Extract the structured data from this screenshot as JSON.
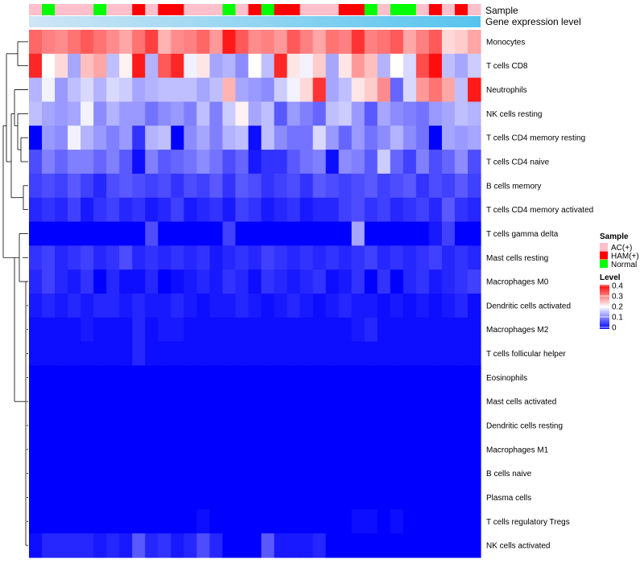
{
  "chart_data": {
    "type": "heatmap",
    "title": "",
    "annotation_labels": {
      "sample": "Sample",
      "gene_expression": "Gene expression level"
    },
    "row_labels": [
      "Monocytes",
      "T cells CD8",
      "Neutrophils",
      "NK cells resting",
      "T cells CD4 memory resting",
      "T cells CD4 naive",
      "B cells memory",
      "T cells CD4 memory activated",
      "T cells gamma delta",
      "Mast cells resting",
      "Macrophages M0",
      "Dendritic cells activated",
      "Macrophages M2",
      "T cells follicular helper",
      "Eosinophils",
      "Mast cells activated",
      "Dendritic cells resting",
      "Macrophages M1",
      "B cells naive",
      "Plasma cells",
      "T cells regulatory  Tregs",
      "NK cells activated"
    ],
    "sample_groups": [
      "AC",
      "Normal",
      "AC",
      "AC",
      "AC",
      "Normal",
      "AC",
      "AC",
      "HAM",
      "AC",
      "HAM",
      "HAM",
      "AC",
      "AC",
      "AC",
      "Normal",
      "AC",
      "HAM",
      "Normal",
      "HAM",
      "HAM",
      "AC",
      "AC",
      "AC",
      "HAM",
      "HAM",
      "Normal",
      "AC",
      "Normal",
      "Normal",
      "AC",
      "HAM",
      "AC",
      "HAM",
      "AC"
    ],
    "expression_gradient_colors": [
      "#cfe6f5",
      "#56c4ee"
    ],
    "values": [
      [
        0.32,
        0.3,
        0.29,
        0.31,
        0.33,
        0.31,
        0.29,
        0.27,
        0.31,
        0.35,
        0.26,
        0.29,
        0.3,
        0.32,
        0.28,
        0.38,
        0.33,
        0.29,
        0.3,
        0.28,
        0.33,
        0.3,
        0.27,
        0.31,
        0.3,
        0.36,
        0.3,
        0.31,
        0.33,
        0.27,
        0.3,
        0.33,
        0.23,
        0.24,
        0.27
      ],
      [
        0.37,
        0.2,
        0.23,
        0.13,
        0.25,
        0.27,
        0.15,
        0.21,
        0.38,
        0.14,
        0.33,
        0.37,
        0.19,
        0.22,
        0.13,
        0.14,
        0.11,
        0.2,
        0.15,
        0.37,
        0.22,
        0.19,
        0.24,
        0.13,
        0.22,
        0.28,
        0.25,
        0.14,
        0.2,
        0.17,
        0.34,
        0.39,
        0.15,
        0.13,
        0.16
      ],
      [
        0.14,
        0.19,
        0.12,
        0.15,
        0.17,
        0.14,
        0.17,
        0.16,
        0.13,
        0.14,
        0.15,
        0.15,
        0.15,
        0.13,
        0.15,
        0.26,
        0.13,
        0.12,
        0.11,
        0.16,
        0.19,
        0.23,
        0.36,
        0.13,
        0.15,
        0.22,
        0.24,
        0.29,
        0.08,
        0.17,
        0.28,
        0.31,
        0.27,
        0.15,
        0.38
      ],
      [
        0.15,
        0.13,
        0.12,
        0.13,
        0.19,
        0.11,
        0.14,
        0.12,
        0.12,
        0.09,
        0.11,
        0.12,
        0.1,
        0.15,
        0.1,
        0.16,
        0.21,
        0.13,
        0.15,
        0.07,
        0.12,
        0.1,
        0.08,
        0.15,
        0.16,
        0.12,
        0.07,
        0.13,
        0.11,
        0.1,
        0.09,
        0.12,
        0.13,
        0.15,
        0.14
      ],
      [
        0.0,
        0.12,
        0.11,
        0.19,
        0.14,
        0.12,
        0.1,
        0.12,
        0.04,
        0.14,
        0.15,
        0.0,
        0.11,
        0.13,
        0.1,
        0.14,
        0.15,
        0.01,
        0.15,
        0.11,
        0.09,
        0.09,
        0.17,
        0.12,
        0.08,
        0.12,
        0.09,
        0.11,
        0.14,
        0.11,
        0.09,
        0.0,
        0.13,
        0.12,
        0.13
      ],
      [
        0.06,
        0.1,
        0.08,
        0.1,
        0.1,
        0.08,
        0.1,
        0.07,
        0.01,
        0.1,
        0.07,
        0.08,
        0.09,
        0.11,
        0.09,
        0.06,
        0.08,
        0.02,
        0.04,
        0.04,
        0.07,
        0.09,
        0.1,
        0.01,
        0.11,
        0.1,
        0.07,
        0.16,
        0.08,
        0.05,
        0.1,
        0.06,
        0.08,
        0.11,
        0.06
      ],
      [
        0.05,
        0.06,
        0.05,
        0.07,
        0.05,
        0.03,
        0.06,
        0.07,
        0.06,
        0.05,
        0.06,
        0.04,
        0.06,
        0.05,
        0.07,
        0.04,
        0.07,
        0.06,
        0.04,
        0.05,
        0.06,
        0.04,
        0.07,
        0.06,
        0.05,
        0.06,
        0.07,
        0.05,
        0.06,
        0.07,
        0.04,
        0.06,
        0.05,
        0.07,
        0.05
      ],
      [
        0.03,
        0.04,
        0.03,
        0.05,
        0.02,
        0.04,
        0.05,
        0.03,
        0.04,
        0.02,
        0.03,
        0.05,
        0.02,
        0.03,
        0.04,
        0.02,
        0.05,
        0.04,
        0.02,
        0.03,
        0.04,
        0.02,
        0.03,
        0.03,
        0.05,
        0.06,
        0.04,
        0.05,
        0.03,
        0.04,
        0.05,
        0.03,
        0.07,
        0.04,
        0.03
      ],
      [
        0.0,
        0.0,
        0.0,
        0.0,
        0.0,
        0.0,
        0.0,
        0.0,
        0.0,
        0.06,
        0.0,
        0.0,
        0.0,
        0.0,
        0.0,
        0.05,
        0.0,
        0.0,
        0.0,
        0.0,
        0.0,
        0.0,
        0.0,
        0.0,
        0.0,
        0.13,
        0.0,
        0.0,
        0.0,
        0.0,
        0.0,
        0.02,
        0.05,
        0.0,
        0.0
      ],
      [
        0.04,
        0.05,
        0.03,
        0.04,
        0.05,
        0.03,
        0.04,
        0.06,
        0.03,
        0.04,
        0.03,
        0.04,
        0.03,
        0.04,
        0.02,
        0.03,
        0.04,
        0.03,
        0.05,
        0.04,
        0.03,
        0.04,
        0.03,
        0.04,
        0.03,
        0.04,
        0.05,
        0.03,
        0.04,
        0.03,
        0.04,
        0.05,
        0.03,
        0.04,
        0.03
      ],
      [
        0.03,
        0.05,
        0.03,
        0.02,
        0.04,
        0.0,
        0.03,
        0.01,
        0.01,
        0.03,
        0.0,
        0.01,
        0.02,
        0.03,
        0.02,
        0.04,
        0.03,
        0.01,
        0.04,
        0.03,
        0.02,
        0.03,
        0.04,
        0.01,
        0.02,
        0.04,
        0.0,
        0.04,
        0.0,
        0.03,
        0.04,
        0.02,
        0.03,
        0.04,
        0.05
      ],
      [
        0.02,
        0.03,
        0.02,
        0.03,
        0.02,
        0.03,
        0.03,
        0.02,
        0.03,
        0.02,
        0.02,
        0.03,
        0.02,
        0.01,
        0.02,
        0.02,
        0.03,
        0.02,
        0.01,
        0.02,
        0.03,
        0.02,
        0.01,
        0.02,
        0.03,
        0.02,
        0.02,
        0.01,
        0.02,
        0.01,
        0.02,
        0.01,
        0.02,
        0.03,
        0.01
      ],
      [
        0.01,
        0.01,
        0.01,
        0.01,
        0.02,
        0.01,
        0.01,
        0.01,
        0.03,
        0.01,
        0.02,
        0.02,
        0.01,
        0.01,
        0.01,
        0.01,
        0.01,
        0.01,
        0.01,
        0.01,
        0.01,
        0.01,
        0.01,
        0.01,
        0.01,
        0.02,
        0.03,
        0.01,
        0.01,
        0.01,
        0.01,
        0.01,
        0.01,
        0.01,
        0.01
      ],
      [
        0.01,
        0.01,
        0.01,
        0.01,
        0.01,
        0.01,
        0.01,
        0.01,
        0.03,
        0.01,
        0.01,
        0.01,
        0.01,
        0.01,
        0.01,
        0.01,
        0.01,
        0.01,
        0.01,
        0.01,
        0.01,
        0.01,
        0.01,
        0.01,
        0.01,
        0.01,
        0.01,
        0.01,
        0.01,
        0.01,
        0.01,
        0.01,
        0.01,
        0.01,
        0.01
      ],
      [
        0.0,
        0.0,
        0.0,
        0.0,
        0.0,
        0.0,
        0.0,
        0.0,
        0.0,
        0.0,
        0.0,
        0.0,
        0.0,
        0.0,
        0.0,
        0.0,
        0.0,
        0.0,
        0.0,
        0.0,
        0.0,
        0.0,
        0.0,
        0.0,
        0.0,
        0.0,
        0.0,
        0.0,
        0.0,
        0.0,
        0.0,
        0.0,
        0.0,
        0.0,
        0.0
      ],
      [
        0.0,
        0.0,
        0.0,
        0.0,
        0.0,
        0.0,
        0.0,
        0.0,
        0.0,
        0.0,
        0.0,
        0.0,
        0.0,
        0.0,
        0.0,
        0.0,
        0.0,
        0.0,
        0.0,
        0.0,
        0.0,
        0.0,
        0.0,
        0.0,
        0.0,
        0.0,
        0.0,
        0.0,
        0.0,
        0.0,
        0.0,
        0.0,
        0.0,
        0.0,
        0.0
      ],
      [
        0.0,
        0.0,
        0.0,
        0.0,
        0.0,
        0.0,
        0.0,
        0.0,
        0.0,
        0.0,
        0.0,
        0.0,
        0.0,
        0.0,
        0.0,
        0.0,
        0.0,
        0.0,
        0.0,
        0.0,
        0.0,
        0.0,
        0.0,
        0.0,
        0.0,
        0.0,
        0.0,
        0.0,
        0.0,
        0.0,
        0.0,
        0.0,
        0.0,
        0.0,
        0.0
      ],
      [
        0.0,
        0.0,
        0.0,
        0.0,
        0.0,
        0.0,
        0.0,
        0.0,
        0.0,
        0.0,
        0.0,
        0.0,
        0.0,
        0.0,
        0.0,
        0.0,
        0.0,
        0.0,
        0.0,
        0.0,
        0.0,
        0.0,
        0.0,
        0.0,
        0.0,
        0.0,
        0.0,
        0.0,
        0.0,
        0.0,
        0.0,
        0.0,
        0.0,
        0.0,
        0.0
      ],
      [
        0.0,
        0.0,
        0.0,
        0.0,
        0.0,
        0.0,
        0.0,
        0.0,
        0.0,
        0.0,
        0.0,
        0.0,
        0.0,
        0.0,
        0.0,
        0.0,
        0.0,
        0.0,
        0.0,
        0.0,
        0.0,
        0.0,
        0.0,
        0.0,
        0.0,
        0.0,
        0.0,
        0.0,
        0.0,
        0.0,
        0.0,
        0.0,
        0.0,
        0.0,
        0.0
      ],
      [
        0.0,
        0.0,
        0.0,
        0.0,
        0.0,
        0.0,
        0.0,
        0.0,
        0.0,
        0.0,
        0.0,
        0.0,
        0.0,
        0.0,
        0.0,
        0.0,
        0.0,
        0.0,
        0.0,
        0.0,
        0.0,
        0.0,
        0.0,
        0.0,
        0.0,
        0.0,
        0.0,
        0.0,
        0.0,
        0.0,
        0.0,
        0.0,
        0.0,
        0.0,
        0.0
      ],
      [
        0.0,
        0.0,
        0.0,
        0.0,
        0.0,
        0.0,
        0.0,
        0.0,
        0.0,
        0.0,
        0.0,
        0.0,
        0.0,
        0.01,
        0.0,
        0.0,
        0.0,
        0.0,
        0.0,
        0.0,
        0.0,
        0.0,
        0.0,
        0.0,
        0.0,
        0.01,
        0.01,
        0.0,
        0.01,
        0.0,
        0.0,
        0.0,
        0.0,
        0.0,
        0.0
      ],
      [
        0.01,
        0.03,
        0.03,
        0.03,
        0.03,
        0.02,
        0.03,
        0.02,
        0.07,
        0.03,
        0.04,
        0.02,
        0.03,
        0.06,
        0.03,
        0.0,
        0.0,
        0.0,
        0.07,
        0.02,
        0.02,
        0.02,
        0.03,
        0.0,
        0.0,
        0.0,
        0.0,
        0.0,
        0.0,
        0.0,
        0.0,
        0.0,
        0.0,
        0.0,
        0.0
      ]
    ],
    "legend": {
      "sample_title": "Sample",
      "sample_entries": [
        {
          "label": "AC(+)",
          "color": "#ffc0cb"
        },
        {
          "label": "HAM(+)",
          "color": "#ff0000"
        },
        {
          "label": "Normal",
          "color": "#00ff00"
        }
      ],
      "level_title": "Level",
      "level_ticks": [
        "0.4",
        "0.3",
        "0.2",
        "0.1",
        "0"
      ],
      "level_range": [
        0,
        0.4
      ],
      "colorscale": [
        "#0000ff",
        "#ffffff",
        "#ff0000"
      ]
    }
  }
}
